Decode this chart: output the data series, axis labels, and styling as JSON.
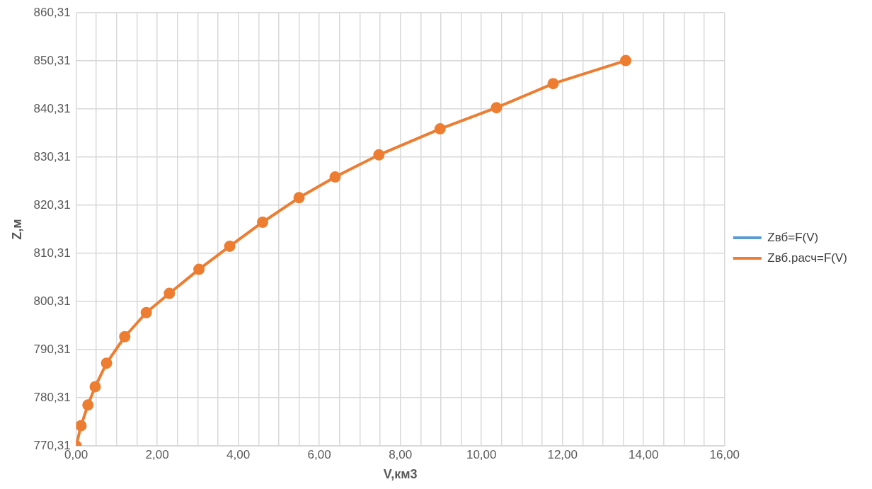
{
  "chart_data": {
    "type": "line",
    "xlabel": "V,км3",
    "ylabel": "Z,м",
    "xlim": [
      0,
      16
    ],
    "ylim": [
      770.31,
      860.31
    ],
    "xticks": [
      {
        "value": 0,
        "label": "0,00"
      },
      {
        "value": 0.5,
        "label": null
      },
      {
        "value": 1,
        "label": null
      },
      {
        "value": 1.5,
        "label": null
      },
      {
        "value": 2,
        "label": "2,00"
      },
      {
        "value": 2.5,
        "label": null
      },
      {
        "value": 3,
        "label": null
      },
      {
        "value": 3.5,
        "label": null
      },
      {
        "value": 4,
        "label": "4,00"
      },
      {
        "value": 4.5,
        "label": null
      },
      {
        "value": 5,
        "label": null
      },
      {
        "value": 5.5,
        "label": null
      },
      {
        "value": 6,
        "label": "6,00"
      },
      {
        "value": 6.5,
        "label": null
      },
      {
        "value": 7,
        "label": null
      },
      {
        "value": 7.5,
        "label": null
      },
      {
        "value": 8,
        "label": "8,00"
      },
      {
        "value": 8.5,
        "label": null
      },
      {
        "value": 9,
        "label": null
      },
      {
        "value": 9.5,
        "label": null
      },
      {
        "value": 10,
        "label": "10,00"
      },
      {
        "value": 10.5,
        "label": null
      },
      {
        "value": 11,
        "label": null
      },
      {
        "value": 11.5,
        "label": null
      },
      {
        "value": 12,
        "label": "12,00"
      },
      {
        "value": 12.5,
        "label": null
      },
      {
        "value": 13,
        "label": null
      },
      {
        "value": 13.5,
        "label": null
      },
      {
        "value": 14,
        "label": "14,00"
      },
      {
        "value": 14.5,
        "label": null
      },
      {
        "value": 15,
        "label": null
      },
      {
        "value": 15.5,
        "label": null
      },
      {
        "value": 16,
        "label": "16,00"
      }
    ],
    "yticks": [
      {
        "value": 770.31,
        "label": "770,31"
      },
      {
        "value": 780.31,
        "label": "780,31"
      },
      {
        "value": 790.31,
        "label": "790,31"
      },
      {
        "value": 800.31,
        "label": "800,31"
      },
      {
        "value": 810.31,
        "label": "810,31"
      },
      {
        "value": 820.31,
        "label": "820,31"
      },
      {
        "value": 830.31,
        "label": "830,31"
      },
      {
        "value": 840.31,
        "label": "840,31"
      },
      {
        "value": 850.31,
        "label": "850,31"
      },
      {
        "value": 860.31,
        "label": "860,31"
      }
    ],
    "grid": true,
    "legend": "right",
    "marker": "circle",
    "line_style": "solid",
    "x": [
      0,
      0.12,
      0.29,
      0.47,
      0.75,
      1.2,
      1.73,
      2.3,
      3.03,
      3.79,
      4.6,
      5.5,
      6.39,
      7.47,
      8.98,
      10.37,
      11.77,
      13.56
    ],
    "series": [
      {
        "name": "Zвб=F(V)",
        "color": "#5b9bd5",
        "values": [
          null,
          null,
          null,
          null,
          null,
          null,
          null,
          null,
          null,
          null,
          null,
          null,
          null,
          null,
          null,
          null,
          null,
          null
        ]
      },
      {
        "name": "Zвб.расч=F(V)",
        "color": "#ed7d31",
        "values": [
          770.31,
          774.5,
          778.8,
          782.6,
          787.5,
          793.0,
          798.0,
          802.0,
          807.0,
          811.8,
          816.8,
          821.9,
          826.2,
          830.8,
          836.2,
          840.6,
          845.6,
          850.4
        ]
      }
    ]
  }
}
